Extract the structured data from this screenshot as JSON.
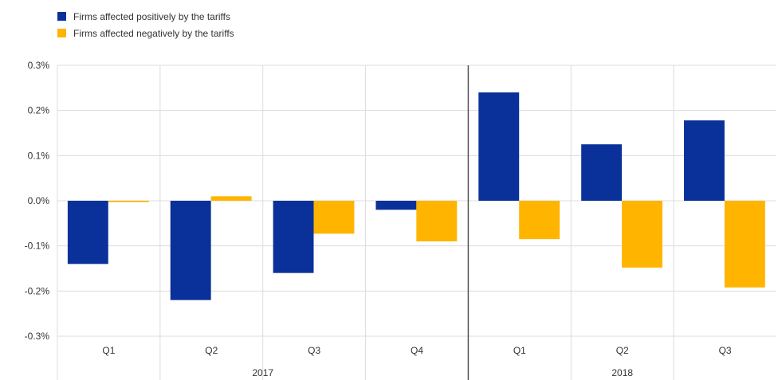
{
  "colors": {
    "positive": "#0a3199",
    "negative": "#ffb400",
    "grid": "#dcdcdc",
    "axis": "#7f7f7f",
    "divider": "#555555"
  },
  "legend": [
    {
      "label": "Firms affected positively by the tariffs"
    },
    {
      "label": "Firms affected negatively by the tariffs"
    }
  ],
  "chart_data": {
    "type": "bar",
    "title": "",
    "xlabel": "",
    "ylabel": "",
    "ylim": [
      -0.3,
      0.3
    ],
    "y_ticks": [
      "0.3%",
      "0.2%",
      "0.1%",
      "0.0%",
      "-0.1%",
      "-0.2%",
      "-0.3%"
    ],
    "y_tick_values": [
      0.3,
      0.2,
      0.1,
      0.0,
      -0.1,
      -0.2,
      -0.3
    ],
    "grid": true,
    "legend_position": "top-left",
    "categories": [
      "Q1",
      "Q2",
      "Q3",
      "Q4",
      "Q1",
      "Q2",
      "Q3"
    ],
    "groups": [
      {
        "label": "2017",
        "count": 4
      },
      {
        "label": "2018",
        "count": 3
      }
    ],
    "series": [
      {
        "name": "Firms affected positively by the tariffs",
        "values": [
          -0.14,
          -0.22,
          -0.16,
          -0.02,
          0.24,
          0.125,
          0.178
        ]
      },
      {
        "name": "Firms affected negatively by the tariffs",
        "values": [
          -0.003,
          0.01,
          -0.073,
          -0.09,
          -0.085,
          -0.148,
          -0.192
        ]
      }
    ]
  }
}
